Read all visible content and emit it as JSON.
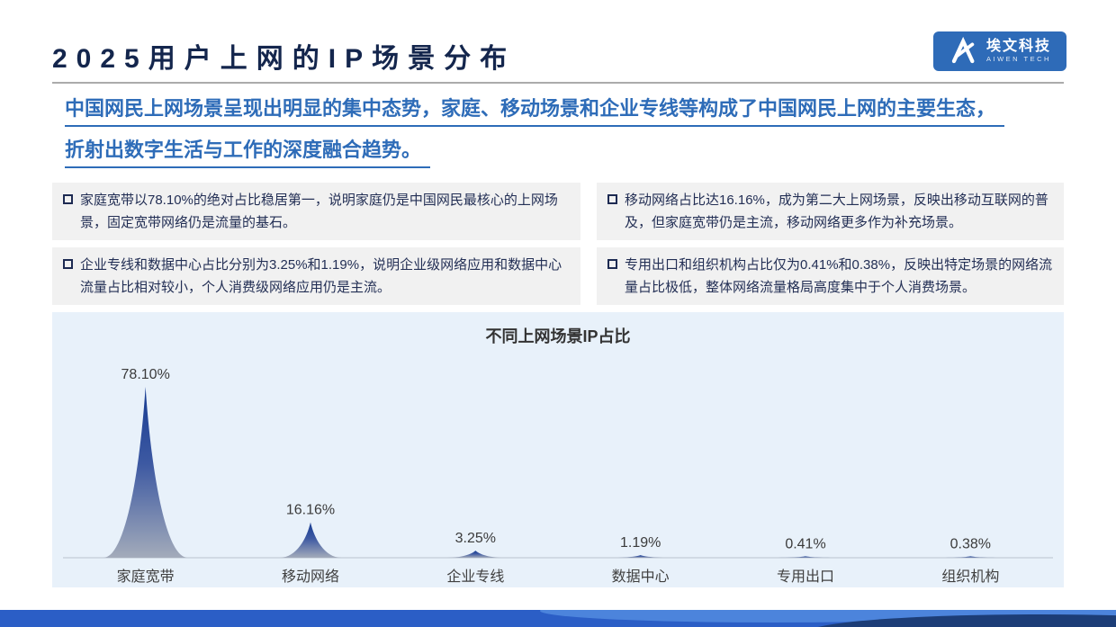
{
  "header": {
    "title": "2025用户上网的IP场景分布",
    "logo": {
      "name_cn": "埃文科技",
      "name_en": "AIWEN TECH"
    }
  },
  "headline_lines": [
    "中国网民上网场景呈现出明显的集中态势，家庭、移动场景和企业专线等构成了中国网民上网的主要生态，",
    "折射出数字生活与工作的深度融合趋势。"
  ],
  "bullets": [
    "家庭宽带以78.10%的绝对占比稳居第一，说明家庭仍是中国网民最核心的上网场景，固定宽带网络仍是流量的基石。",
    "移动网络占比达16.16%，成为第二大上网场景，反映出移动互联网的普及，但家庭宽带仍是主流，移动网络更多作为补充场景。",
    "企业专线和数据中心占比分别为3.25%和1.19%，说明企业级网络应用和数据中心流量占比相对较小，个人消费级网络应用仍是主流。",
    "专用出口和组织机构占比仅为0.41%和0.38%，反映出特定场景的网络流量占比极低，整体网络流量格局高度集中于个人消费场景。"
  ],
  "chart_data": {
    "type": "area",
    "title": "不同上网场景IP占比",
    "categories": [
      "家庭宽带",
      "移动网络",
      "企业专线",
      "数据中心",
      "专用出口",
      "组织机构"
    ],
    "values": [
      78.1,
      16.16,
      3.25,
      1.19,
      0.41,
      0.38
    ],
    "value_labels": [
      "78.10%",
      "16.16%",
      "3.25%",
      "1.19%",
      "0.41%",
      "0.38%"
    ],
    "ylim": [
      0,
      80
    ],
    "grid": false,
    "legend": "none",
    "colors": {
      "peak_top": "#173c92",
      "peak_mid": "#3d59a2",
      "peak_bottom": "#a3abba",
      "axis_line": "#c9d3dd",
      "value_label": "#3b3b3b",
      "category_label": "#404040",
      "panel_bg": "#e8f1fa"
    }
  },
  "colors": {
    "title_navy": "#14264d",
    "headline_blue": "#2e6cb8",
    "box_bg": "#f1f1f1",
    "box_text": "#232f55",
    "logo_blue": "#2e6bb8",
    "footer_main": "#2b5ec6",
    "footer_light": "#4c84dc",
    "footer_dark": "#1c3d77"
  }
}
